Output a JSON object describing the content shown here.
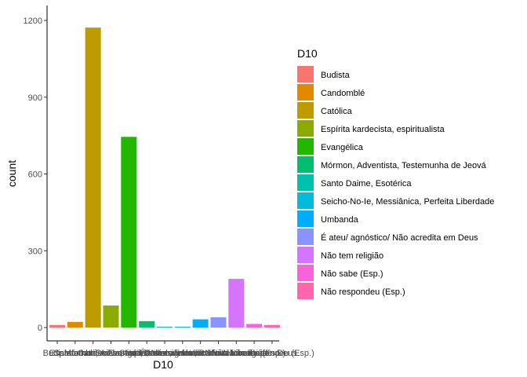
{
  "chart_data": {
    "type": "bar",
    "xlabel": "D10",
    "ylabel": "count",
    "ylim": [
      0,
      1230
    ],
    "yticks": [
      0,
      300,
      600,
      900,
      1200
    ],
    "grid": false,
    "legend": {
      "title": "D10",
      "position": "right"
    },
    "categories": [
      "Budista",
      "Candomblé",
      "Católica",
      "Espírita kardecista, espiritualista",
      "Evangélica",
      "Mórmon, Adventista, Testemunha de Jeová",
      "Santo Daime, Esotérica",
      "Seicho-No-Ie, Messiânica, Perfeita Liberdade",
      "Umbanda",
      "É ateu/ agnóstico/ Não acredita em Deus",
      "Não tem religião",
      "Não sabe (Esp.)",
      "Não respondeu (Esp.)"
    ],
    "values": [
      10,
      22,
      1172,
      86,
      745,
      25,
      3,
      3,
      32,
      40,
      190,
      14,
      10
    ],
    "colors": [
      "#F8766D",
      "#E18A00",
      "#BE9C00",
      "#8CAB00",
      "#24B700",
      "#00BE70",
      "#00C1AB",
      "#00BBDA",
      "#00ACFC",
      "#8B93FF",
      "#D575FE",
      "#F962DD",
      "#FF65AC"
    ]
  }
}
